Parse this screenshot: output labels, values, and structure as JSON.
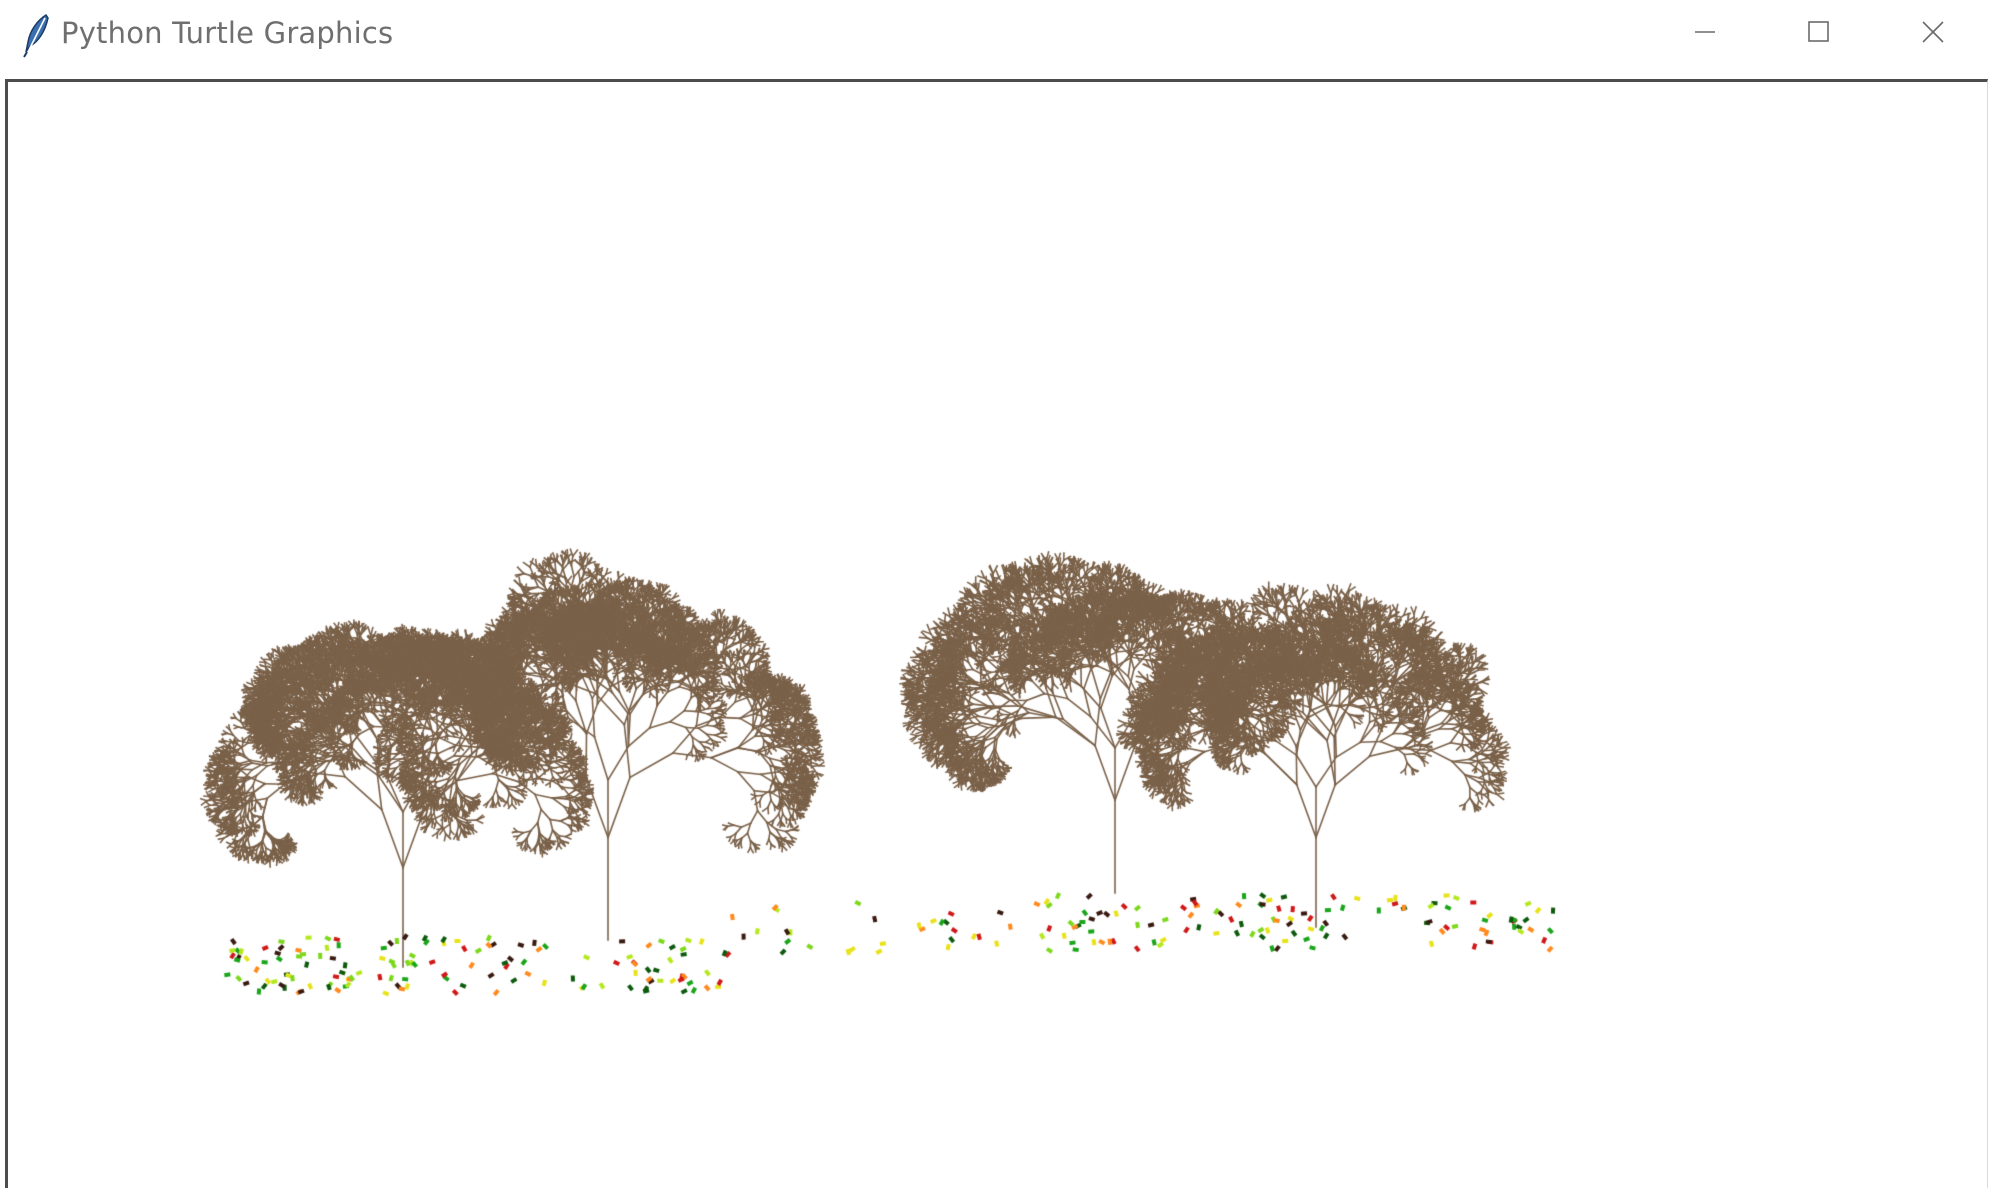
{
  "window": {
    "title": "Python Turtle Graphics",
    "icon": "feather-icon",
    "controls": {
      "minimize": "minimize-icon",
      "maximize": "maximize-icon",
      "close": "close-icon"
    }
  },
  "canvas": {
    "background": "#ffffff",
    "branch_color": "#7a6149",
    "leaf_colors": [
      "#e8e21a",
      "#ff8a1e",
      "#d01818",
      "#1aa51a",
      "#7dd81c",
      "#3a1a10",
      "#0d5a0d",
      "#b5e81e"
    ]
  }
}
